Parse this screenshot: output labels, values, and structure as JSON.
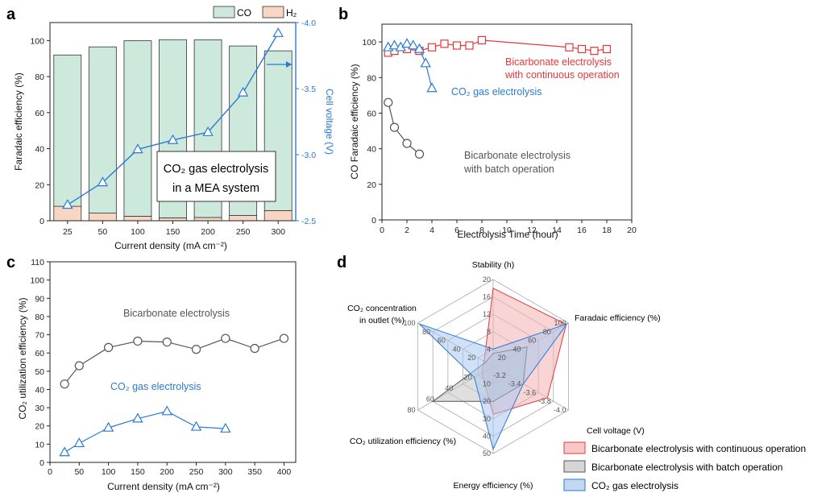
{
  "colors": {
    "co_fill": "#cde9dc",
    "h2_fill": "#f9d5c3",
    "blue": "#2a7ad5",
    "red": "#e8373b",
    "gray": "#555555",
    "red_fill": "#f4b0b0",
    "gray_fill": "#c4c4c4",
    "blue_fill": "#a9c6ee"
  },
  "chart_data": [
    {
      "panel": "a",
      "type": "bar",
      "xlabel": "Current density (mA cm⁻²)",
      "ylabel": "Faradaic efficiency (%)",
      "y2label": "Cell voltage (V)",
      "categories": [
        "25",
        "50",
        "100",
        "150",
        "200",
        "250",
        "300"
      ],
      "ylim": [
        0,
        110
      ],
      "yticks": [
        "0",
        "20",
        "40",
        "60",
        "80",
        "100"
      ],
      "y2lim": [
        -2.5,
        -4.0
      ],
      "y2ticks": [
        "-2.5",
        "-3.0",
        "-3.5",
        "-4.0"
      ],
      "legend": [
        "CO",
        "H₂"
      ],
      "series": [
        {
          "name": "CO",
          "kind": "bar",
          "values": [
            84.0,
            92.3,
            97.4,
            98.9,
            98.6,
            94.1,
            88.7
          ]
        },
        {
          "name": "H₂",
          "kind": "bar",
          "values": [
            8.0,
            4.2,
            2.5,
            1.6,
            1.8,
            2.9,
            5.6
          ]
        },
        {
          "kind": "line",
          "axis": "right",
          "values": [
            -2.62,
            -2.79,
            -3.04,
            -3.11,
            -3.17,
            -3.47,
            -3.92
          ]
        }
      ],
      "annotation": [
        "CO₂ gas electrolysis",
        "in a MEA system"
      ]
    },
    {
      "panel": "b",
      "type": "line",
      "xlabel": "Electrolysis Time (hour)",
      "ylabel": "CO Faradaic efficiency (%)",
      "xlim": [
        0,
        20
      ],
      "ylim": [
        0,
        110
      ],
      "xticks": [
        "0",
        "2",
        "4",
        "6",
        "8",
        "10",
        "12",
        "14",
        "16",
        "18",
        "20"
      ],
      "yticks": [
        "0",
        "20",
        "40",
        "60",
        "80",
        "100"
      ],
      "series": [
        {
          "label_lines": [
            "Bicarbonate electrolysis",
            "with continuous operation"
          ],
          "x": [
            0.5,
            1,
            2,
            3,
            4,
            5,
            6,
            7,
            8,
            15,
            16,
            17,
            18
          ],
          "y": [
            94,
            95,
            96,
            95,
            97,
            99,
            98,
            98,
            101,
            97,
            96,
            95,
            96
          ]
        },
        {
          "label_lines": [
            "CO₂ gas electrolysis"
          ],
          "x": [
            0.5,
            1,
            1.5,
            2,
            2.5,
            3,
            3.5,
            4
          ],
          "y": [
            97,
            98,
            97,
            99,
            98,
            96,
            88,
            74
          ]
        },
        {
          "label_lines": [
            "Bicarbonate electrolysis",
            "with batch operation"
          ],
          "x": [
            0.5,
            1,
            2,
            3
          ],
          "y": [
            66,
            52,
            43,
            37
          ]
        }
      ]
    },
    {
      "panel": "c",
      "type": "line",
      "xlabel": "Current density (mA cm⁻²)",
      "ylabel": "CO₂ utilization efficiency (%)",
      "xlim": [
        0,
        420
      ],
      "ylim": [
        0,
        110
      ],
      "xticks": [
        "0",
        "50",
        "100",
        "150",
        "200",
        "250",
        "300",
        "350",
        "400"
      ],
      "yticks": [
        "0",
        "10",
        "20",
        "30",
        "40",
        "50",
        "60",
        "70",
        "80",
        "90",
        "100",
        "110"
      ],
      "series": [
        {
          "label_lines": [
            "Bicarbonate electrolysis"
          ],
          "x": [
            25,
            50,
            100,
            150,
            200,
            250,
            300,
            350,
            400
          ],
          "y": [
            43,
            53,
            63,
            66.5,
            66,
            62,
            68,
            62.5,
            68
          ]
        },
        {
          "label_lines": [
            "CO₂ gas electrolysis"
          ],
          "x": [
            25,
            50,
            100,
            150,
            200,
            250,
            300
          ],
          "y": [
            5.5,
            10.5,
            19,
            24,
            28,
            19.5,
            18.5
          ]
        }
      ]
    },
    {
      "panel": "d",
      "type": "radar",
      "axes": [
        {
          "label_lines": [
            "Stability (h)"
          ],
          "ticks": [
            "4",
            "8",
            "12",
            "16",
            "20"
          ]
        },
        {
          "label_lines": [
            "Faradaic efficiency (%)"
          ],
          "ticks": [
            "20",
            "40",
            "60",
            "80",
            "100"
          ]
        },
        {
          "label_lines": [
            "Cell voltage (V)"
          ],
          "ticks": [
            "-3.2",
            "-3.4",
            "-3.6",
            "-3.8",
            "-4.0"
          ]
        },
        {
          "label_lines": [
            "Energy efficiency (%)"
          ],
          "ticks": [
            "10",
            "20",
            "30",
            "40",
            "50"
          ]
        },
        {
          "label_lines": [
            "CO₂ utilization efficiency (%)"
          ],
          "ticks": [
            "20",
            "40",
            "60",
            "80"
          ]
        },
        {
          "label_lines": [
            "CO₂ concentration",
            "in outlet (%)"
          ],
          "ticks": [
            "20",
            "40",
            "60",
            "80",
            "100"
          ]
        }
      ],
      "series": [
        {
          "name": "Bicarbonate electrolysis with continuous operation",
          "values": [
            0.9,
            0.97,
            0.72,
            0.55,
            0.15,
            0.12
          ]
        },
        {
          "name": "Bicarbonate electrolysis with batch operation",
          "values": [
            0.15,
            0.45,
            0.4,
            0.4,
            0.8,
            0.1
          ]
        },
        {
          "name": "CO₂ gas electrolysis",
          "values": [
            0.2,
            0.98,
            0.4,
            0.95,
            0.25,
            0.98
          ]
        }
      ]
    }
  ]
}
